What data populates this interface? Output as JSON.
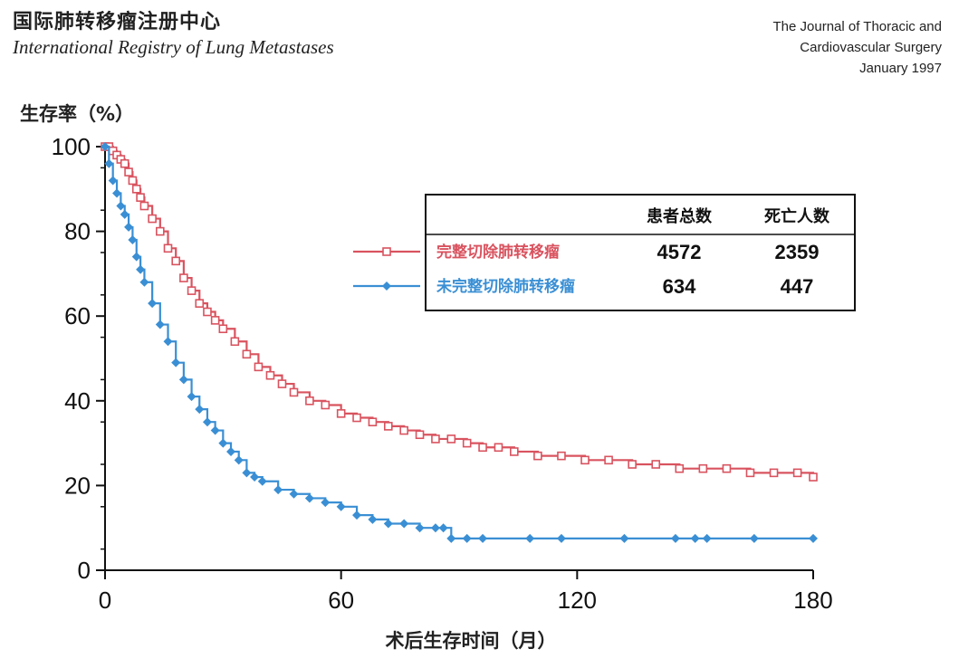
{
  "header": {
    "title_cn": "国际肺转移瘤注册中心",
    "title_en": "International Registry of Lung Metastases",
    "journal_line1": "The Journal of Thoracic and",
    "journal_line2": "Cardiovascular Surgery",
    "journal_line3": "January 1997"
  },
  "chart_data": {
    "type": "line",
    "subtype": "kaplan-meier survival curve",
    "ylabel": "生存率（%）",
    "xlabel": "术后生存时间（月）",
    "xlim": [
      0,
      180
    ],
    "ylim": [
      0,
      100
    ],
    "x_ticks": [
      "0",
      "60",
      "120",
      "180"
    ],
    "y_ticks": [
      "0",
      "20",
      "40",
      "60",
      "80",
      "100"
    ],
    "grid": false,
    "legend": {
      "placement": "top-right",
      "col_patients": "患者总数",
      "col_deaths": "死亡人数"
    },
    "series": [
      {
        "name": "完整切除肺转移瘤",
        "patients": "4572",
        "deaths": "2359",
        "color": "#d9535f",
        "marker": "open-square",
        "x": [
          0,
          1,
          2,
          3,
          4,
          5,
          6,
          7,
          8,
          9,
          10,
          12,
          14,
          16,
          18,
          20,
          22,
          24,
          26,
          28,
          30,
          33,
          36,
          39,
          42,
          45,
          48,
          52,
          56,
          60,
          64,
          68,
          72,
          76,
          80,
          84,
          88,
          92,
          96,
          100,
          104,
          110,
          116,
          122,
          128,
          134,
          140,
          146,
          152,
          158,
          164,
          170,
          176,
          180
        ],
        "y": [
          100,
          100,
          99,
          98,
          97,
          96,
          94,
          92,
          90,
          88,
          86,
          83,
          80,
          76,
          73,
          69,
          66,
          63,
          61,
          59,
          57,
          54,
          51,
          48,
          46,
          44,
          42,
          40,
          39,
          37,
          36,
          35,
          34,
          33,
          32,
          31,
          31,
          30,
          29,
          29,
          28,
          27,
          27,
          26,
          26,
          25,
          25,
          24,
          24,
          24,
          23,
          23,
          23,
          22
        ]
      },
      {
        "name": "未完整切除肺转移瘤",
        "patients": "634",
        "deaths": "447",
        "color": "#3a8fd4",
        "marker": "filled-diamond",
        "x": [
          0,
          1,
          2,
          3,
          4,
          5,
          6,
          7,
          8,
          9,
          10,
          12,
          14,
          16,
          18,
          20,
          22,
          24,
          26,
          28,
          30,
          32,
          34,
          36,
          38,
          40,
          44,
          48,
          52,
          56,
          60,
          64,
          68,
          72,
          76,
          80,
          84,
          86,
          88,
          92,
          96,
          108,
          116,
          132,
          145,
          150,
          153,
          165,
          180
        ],
        "y": [
          100,
          96,
          92,
          89,
          86,
          84,
          81,
          78,
          74,
          71,
          68,
          63,
          58,
          54,
          49,
          45,
          41,
          38,
          35,
          33,
          30,
          28,
          26,
          23,
          22,
          21,
          19,
          18,
          17,
          16,
          15,
          13,
          12,
          11,
          11,
          10,
          10,
          10,
          7.5,
          7.5,
          7.5,
          7.5,
          7.5,
          7.5,
          7.5,
          7.5,
          7.5,
          7.5,
          7.5
        ]
      }
    ]
  }
}
